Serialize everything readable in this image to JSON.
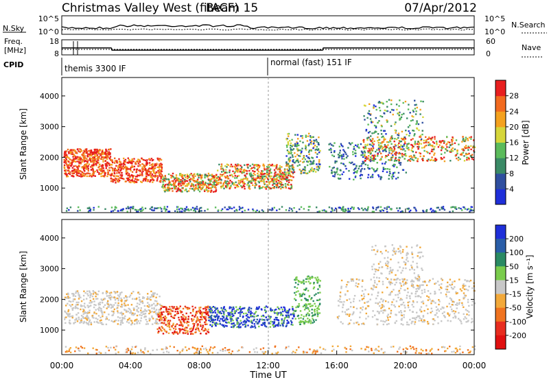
{
  "header": {
    "title": "Christmas Valley West (fitACF)",
    "beam": "Beam 15",
    "date": "07/Apr/2012"
  },
  "colors": {
    "power_scale": [
      "#1f2fd9",
      "#2f4f9f",
      "#3a8a66",
      "#5bbb5b",
      "#d6d63a",
      "#f4a11e",
      "#f26a1f",
      "#e81f1f"
    ],
    "velocity_scale": [
      "#1f2fd9",
      "#2a5ea8",
      "#2a8a63",
      "#7acc4c",
      "#c8c8c8",
      "#f2a93a",
      "#f0731f",
      "#e82d1f",
      "#e01010"
    ]
  },
  "chart_data": [
    {
      "type": "line",
      "panel": "sky-noise / search-noise",
      "left_label": "N.Sky",
      "right_label": "N.Search",
      "left_ticks": [
        "10^5",
        "10^0"
      ],
      "right_ticks": [
        "10^5",
        "10^0"
      ]
    },
    {
      "type": "line",
      "panel": "frequency / nave",
      "left_label_1": "Freq.",
      "left_label_2": "[MHz]",
      "right_label": "Nave",
      "left_ticks": [
        "18",
        "8"
      ],
      "right_ticks": [
        "60",
        "0"
      ],
      "cpid_label": "CPID",
      "modes": [
        {
          "label": "themis 3300 IF",
          "start_hour": 0,
          "end_hour": 12
        },
        {
          "label": "normal (fast) 151 IF",
          "start_hour": 12,
          "end_hour": 24
        }
      ],
      "freq_segments": [
        {
          "x": [
            0,
            2.9
          ],
          "y": 12.6
        },
        {
          "x": [
            2.9,
            15.2
          ],
          "y": 11.1
        },
        {
          "x": [
            15.2,
            24
          ],
          "y": 12.6
        }
      ]
    },
    {
      "type": "heatmap",
      "panel": "power",
      "ylabel": "Slant Range [km]",
      "y_ticks": [
        1000,
        2000,
        3000,
        4000
      ],
      "ylim": [
        200,
        4600
      ],
      "xlim": [
        0,
        24
      ],
      "colorbar_label": "Power [dB]",
      "colorbar_ticks": [
        "28",
        "24",
        "20",
        "16",
        "12",
        "8",
        "4"
      ]
    },
    {
      "type": "heatmap",
      "panel": "velocity",
      "ylabel": "Slant Range [km]",
      "y_ticks": [
        1000,
        2000,
        3000,
        4000
      ],
      "ylim": [
        200,
        4600
      ],
      "xlim": [
        0,
        24
      ],
      "colorbar_label": "Velocity [m s⁻¹]",
      "colorbar_ticks": [
        "200",
        "100",
        "50",
        "15",
        "-15",
        "-50",
        "-100",
        "-200"
      ]
    }
  ],
  "x_axis": {
    "label": "Time UT",
    "ticks": [
      "00:00",
      "04:00",
      "08:00",
      "12:00",
      "16:00",
      "20:00",
      "00:00"
    ]
  }
}
